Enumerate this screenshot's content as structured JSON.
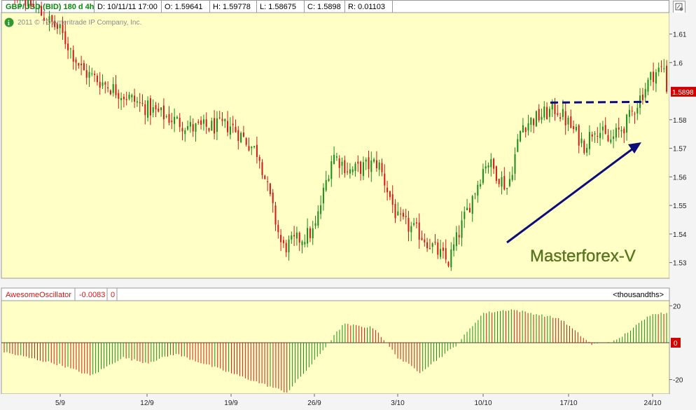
{
  "header": {
    "symbol": "GBP/USD (BID) 180 d 4h",
    "date": "D: 10/11/11 17:00",
    "open": "O: 1.59641",
    "high": "H: 1.59778",
    "low": "L: 1.58675",
    "close": "C: 1.5898",
    "range": "R: 0.01103",
    "copyright": "2011 © TD Ameritrade IP Company, Inc.",
    "info_icon": "info-icon",
    "corner_icon": "chart-settings-icon"
  },
  "oscillator_header": {
    "name": "AwesomeOscillator",
    "value": "-0.0083",
    "zero": "0",
    "units": "<thousandths>"
  },
  "price_label": "1.5898",
  "annotation": "Masterforex-V",
  "colors": {
    "background": "#ffffc6",
    "up": "#1a8c1a",
    "down": "#d01818",
    "price_tag": "#d40000",
    "arrow": "#0c0c7a"
  },
  "chart_data": [
    {
      "type": "candlestick",
      "title": "GBP/USD (BID) 180 d 4h",
      "ylim": [
        1.525,
        1.617
      ],
      "yticks": [
        "1.53",
        "1.54",
        "1.55",
        "1.56",
        "1.57",
        "1.58",
        "1.6",
        "1.61"
      ],
      "xticks": [
        "5/9",
        "12/9",
        "19/9",
        "26/9",
        "3/10",
        "10/10",
        "17/10",
        "24/10"
      ],
      "anchors": [
        {
          "date": "late Aug",
          "close": 1.629
        },
        {
          "date": "5/9",
          "close": 1.611
        },
        {
          "date": "7/9",
          "close": 1.597
        },
        {
          "date": "12/9",
          "close": 1.584
        },
        {
          "date": "15/9",
          "close": 1.577
        },
        {
          "date": "19/9",
          "close": 1.578
        },
        {
          "date": "21/9",
          "close": 1.568
        },
        {
          "date": "23/9",
          "close": 1.535
        },
        {
          "date": "26/9",
          "close": 1.541
        },
        {
          "date": "28/9",
          "close": 1.568
        },
        {
          "date": "29/9",
          "close": 1.562
        },
        {
          "date": "30/9",
          "close": 1.565
        },
        {
          "date": "3/10",
          "close": 1.545
        },
        {
          "date": "4/10",
          "close": 1.54
        },
        {
          "date": "5/10",
          "close": 1.53
        },
        {
          "date": "7/10",
          "close": 1.55
        },
        {
          "date": "10/10",
          "close": 1.566
        },
        {
          "date": "12/10",
          "close": 1.556
        },
        {
          "date": "13/10",
          "close": 1.578
        },
        {
          "date": "17/10",
          "close": 1.584
        },
        {
          "date": "19/10",
          "close": 1.571
        },
        {
          "date": "20/10",
          "close": 1.578
        },
        {
          "date": "21/10",
          "close": 1.572
        },
        {
          "date": "22/10",
          "close": 1.579
        },
        {
          "date": "24/10",
          "close": 1.596
        },
        {
          "date": "26/10",
          "close": 1.599
        }
      ],
      "resistance_line": {
        "level": 1.586,
        "style": "dashed"
      },
      "last_price": 1.5898
    },
    {
      "type": "bar",
      "title": "AwesomeOscillator",
      "yticks": [
        "20",
        "0",
        "-20"
      ],
      "ylim": [
        -27,
        22
      ],
      "anchors": [
        {
          "date": "late Aug",
          "value": -5
        },
        {
          "date": "5/9",
          "value": -12
        },
        {
          "date": "10/9",
          "value": -18
        },
        {
          "date": "13/9",
          "value": -8
        },
        {
          "date": "17/9",
          "value": -11
        },
        {
          "date": "20/9",
          "value": -6
        },
        {
          "date": "23/9",
          "value": -27
        },
        {
          "date": "26/9",
          "value": -10
        },
        {
          "date": "28/9",
          "value": 10
        },
        {
          "date": "1/10",
          "value": 8
        },
        {
          "date": "3/10",
          "value": -8
        },
        {
          "date": "5/10",
          "value": -16
        },
        {
          "date": "8/10",
          "value": -2
        },
        {
          "date": "11/10",
          "value": 16
        },
        {
          "date": "14/10",
          "value": 18
        },
        {
          "date": "17/10",
          "value": 13
        },
        {
          "date": "20/10",
          "value": -1
        },
        {
          "date": "22/10",
          "value": 1
        },
        {
          "date": "24/10",
          "value": 16
        },
        {
          "date": "26/10",
          "value": 16
        }
      ]
    }
  ]
}
